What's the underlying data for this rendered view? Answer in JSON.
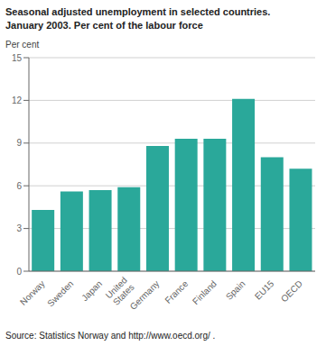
{
  "chart_data": {
    "type": "bar",
    "title": "Seasonal adjusted unemployment in selected countries.",
    "subtitle": "January 2003. Per cent of the labour force",
    "ylabel": "Per cent",
    "annotation": "Source: Statistics Norway and http://www.oecd.org/ .",
    "categories": [
      "Norway",
      "Sweden",
      "Japan",
      "United\nStates",
      "Germany",
      "France",
      "Finland",
      "Spain",
      "EU15",
      "OECD"
    ],
    "values": [
      4.3,
      5.6,
      5.7,
      5.9,
      8.8,
      9.3,
      9.3,
      12.1,
      8.0,
      7.2
    ],
    "color": "#2aA89A",
    "ylim": [
      0,
      15
    ],
    "yticks": [
      0,
      3,
      6,
      9,
      12,
      15
    ],
    "grid": true
  }
}
